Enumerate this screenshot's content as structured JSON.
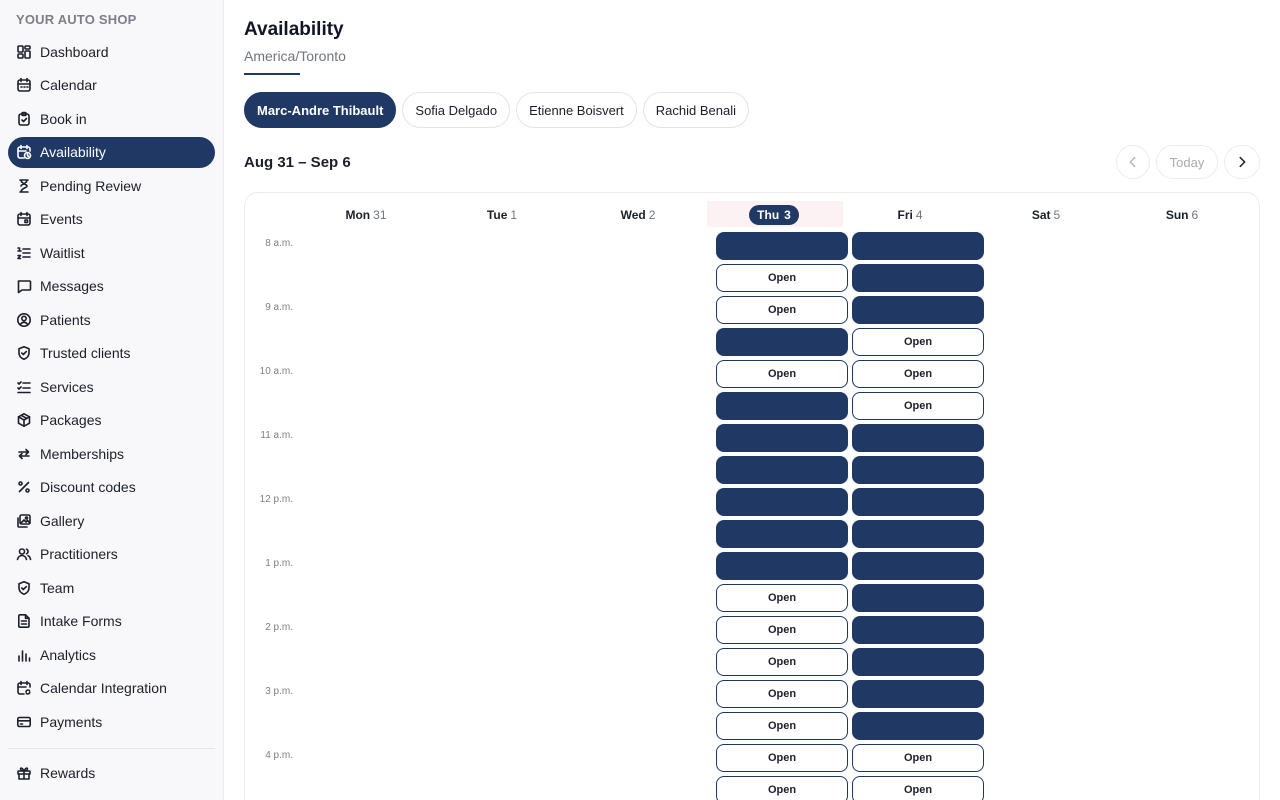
{
  "sidebar": {
    "brand": "YOUR AUTO SHOP",
    "items": [
      {
        "label": "Dashboard",
        "icon": "dashboard-icon",
        "active": false
      },
      {
        "label": "Calendar",
        "icon": "calendar-icon",
        "active": false
      },
      {
        "label": "Book in",
        "icon": "clipboard-icon",
        "active": false
      },
      {
        "label": "Availability",
        "icon": "calendar-clock-icon",
        "active": true
      },
      {
        "label": "Pending Review",
        "icon": "hourglass-icon",
        "active": false
      },
      {
        "label": "Events",
        "icon": "calendar-event-icon",
        "active": false
      },
      {
        "label": "Waitlist",
        "icon": "list-ordered-icon",
        "active": false
      },
      {
        "label": "Messages",
        "icon": "message-icon",
        "active": false
      },
      {
        "label": "Patients",
        "icon": "user-circle-icon",
        "active": false
      },
      {
        "label": "Trusted clients",
        "icon": "shield-check-icon",
        "active": false
      },
      {
        "label": "Services",
        "icon": "checklist-icon",
        "active": false
      },
      {
        "label": "Packages",
        "icon": "package-icon",
        "active": false
      },
      {
        "label": "Memberships",
        "icon": "repeat-icon",
        "active": false
      },
      {
        "label": "Discount codes",
        "icon": "percent-icon",
        "active": false
      },
      {
        "label": "Gallery",
        "icon": "gallery-icon",
        "active": false
      },
      {
        "label": "Practitioners",
        "icon": "users-icon",
        "active": false
      },
      {
        "label": "Team",
        "icon": "shield-check-icon",
        "active": false
      },
      {
        "label": "Intake Forms",
        "icon": "document-icon",
        "active": false
      },
      {
        "label": "Analytics",
        "icon": "bar-chart-icon",
        "active": false
      },
      {
        "label": "Calendar Integration",
        "icon": "calendar-sync-icon",
        "active": false
      },
      {
        "label": "Payments",
        "icon": "credit-card-icon",
        "active": false
      },
      {
        "label": "Rewards",
        "icon": "gift-icon",
        "active": false
      }
    ]
  },
  "header": {
    "title": "Availability",
    "timezone": "America/Toronto"
  },
  "practitioners": [
    {
      "name": "Marc-Andre Thibault",
      "active": true
    },
    {
      "name": "Sofia Delgado",
      "active": false
    },
    {
      "name": "Etienne Boisvert",
      "active": false
    },
    {
      "name": "Rachid Benali",
      "active": false
    }
  ],
  "week": {
    "range": "Aug 31 – Sep 6",
    "today_label": "Today",
    "days": [
      {
        "name": "Mon",
        "num": "31",
        "today": false
      },
      {
        "name": "Tue",
        "num": "1",
        "today": false
      },
      {
        "name": "Wed",
        "num": "2",
        "today": false
      },
      {
        "name": "Thu",
        "num": "3",
        "today": true
      },
      {
        "name": "Fri",
        "num": "4",
        "today": false
      },
      {
        "name": "Sat",
        "num": "5",
        "today": false
      },
      {
        "name": "Sun",
        "num": "6",
        "today": false
      }
    ],
    "times": [
      "8 a.m.",
      "9 a.m.",
      "10 a.m.",
      "11 a.m.",
      "12 p.m.",
      "1 p.m.",
      "2 p.m.",
      "3 p.m.",
      "4 p.m."
    ],
    "open_label": "Open",
    "slots": {
      "Thu": [
        "booked",
        "open",
        "open",
        "booked",
        "open",
        "booked",
        "booked",
        "booked",
        "booked",
        "booked",
        "booked",
        "open",
        "open",
        "open",
        "open",
        "open",
        "open",
        "open"
      ],
      "Fri": [
        "booked",
        "booked",
        "booked",
        "open",
        "open",
        "open",
        "booked",
        "booked",
        "booked",
        "booked",
        "booked",
        "booked",
        "booked",
        "booked",
        "booked",
        "booked",
        "open",
        "open"
      ]
    }
  },
  "colors": {
    "accent": "#1f3864",
    "today_highlight": "#fdf2f3"
  }
}
